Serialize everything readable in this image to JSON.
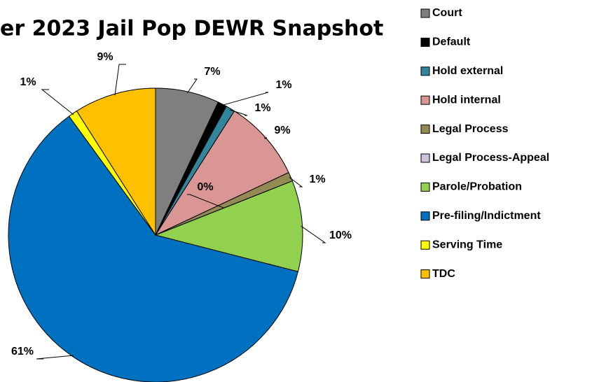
{
  "chart_data": {
    "type": "pie",
    "title": "er 2023 Jail Pop DEWR Snapshot",
    "categories": [
      "Court",
      "Default",
      "Hold external",
      "Hold internal",
      "Legal Process",
      "Legal Process-Appeal",
      "Parole/Probation",
      "Pre-filing/Indictment",
      "Serving Time",
      "TDC"
    ],
    "values": [
      7,
      1,
      1,
      9,
      1,
      0,
      10,
      61,
      1,
      9
    ],
    "value_labels": [
      "7%",
      "1%",
      "1%",
      "9%",
      "1%",
      "0%",
      "10%",
      "61%",
      "1%",
      "9%"
    ],
    "colors": [
      "#7f7f7f",
      "#000000",
      "#31859c",
      "#da9694",
      "#948a54",
      "#ccc0da",
      "#92d050",
      "#0070c0",
      "#ffff00",
      "#ffc000"
    ],
    "legend": "right"
  }
}
